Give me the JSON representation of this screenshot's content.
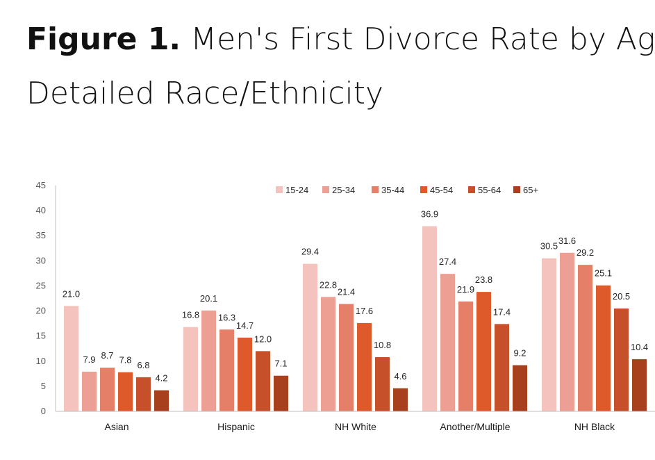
{
  "figure": {
    "lead": "Figure 1.",
    "title_line1": " Men's First Divorce Rate by Age and",
    "title_line2": "Detailed Race/Ethnicity"
  },
  "colors": [
    "#f4c3bd",
    "#ee9f93",
    "#e67f67",
    "#de5a2a",
    "#c6502a",
    "#a8401d"
  ],
  "chart_data": {
    "type": "bar",
    "title": "Men's First Divorce Rate by Age and Detailed Race/Ethnicity",
    "xlabel": "",
    "ylabel": "",
    "ylim": [
      0,
      45
    ],
    "yticks": [
      0,
      5,
      10,
      15,
      20,
      25,
      30,
      35,
      40,
      45
    ],
    "grid": false,
    "legend_position": "top",
    "categories": [
      "Asian",
      "Hispanic",
      "NH White",
      "Another/Multiple",
      "NH Black"
    ],
    "series": [
      {
        "name": "15-24",
        "values": [
          21.0,
          16.8,
          29.4,
          36.9,
          30.5
        ]
      },
      {
        "name": "25-34",
        "values": [
          7.9,
          20.1,
          22.8,
          27.4,
          31.6
        ]
      },
      {
        "name": "35-44",
        "values": [
          8.7,
          16.3,
          21.4,
          21.9,
          29.2
        ]
      },
      {
        "name": "45-54",
        "values": [
          7.8,
          14.7,
          17.6,
          23.8,
          25.1
        ]
      },
      {
        "name": "55-64",
        "values": [
          6.8,
          12.0,
          10.8,
          17.4,
          20.5
        ]
      },
      {
        "name": "65+",
        "values": [
          4.2,
          7.1,
          4.6,
          9.2,
          10.4
        ]
      }
    ]
  }
}
